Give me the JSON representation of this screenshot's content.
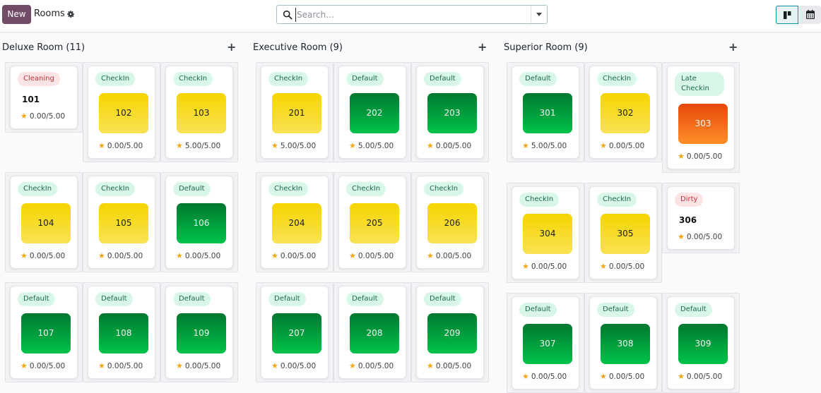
{
  "header": {
    "new_label": "New",
    "title": "Rooms",
    "search_placeholder": "Search..."
  },
  "colors": {
    "brand": "#714b67",
    "checkin_badge": "#d9f7e8",
    "warning_badge": "#fde4e4",
    "tile_yellow": "#f6d500",
    "tile_green": "#00a33f",
    "tile_orange": "#f06017",
    "star": "#f3a712"
  },
  "columns": [
    {
      "title": "Deluxe Room (11)",
      "add_label": "+",
      "cards": [
        {
          "badge": "Cleaning",
          "badge_style": "red",
          "room": "101",
          "tile": "none",
          "rating": "0.00/5.00"
        },
        {
          "badge": "CheckIn",
          "badge_style": "green",
          "room": "102",
          "tile": "yellow",
          "rating": "0.00/5.00"
        },
        {
          "badge": "CheckIn",
          "badge_style": "green",
          "room": "103",
          "tile": "yellow",
          "rating": "5.00/5.00"
        },
        {
          "badge": "CheckIn",
          "badge_style": "green",
          "room": "104",
          "tile": "yellow",
          "rating": "0.00/5.00"
        },
        {
          "badge": "CheckIn",
          "badge_style": "green",
          "room": "105",
          "tile": "yellow",
          "rating": "0.00/5.00"
        },
        {
          "badge": "Default",
          "badge_style": "green",
          "room": "106",
          "tile": "green",
          "rating": "0.00/5.00"
        },
        {
          "badge": "Default",
          "badge_style": "green",
          "room": "107",
          "tile": "green",
          "rating": "0.00/5.00"
        },
        {
          "badge": "Default",
          "badge_style": "green",
          "room": "108",
          "tile": "green",
          "rating": "0.00/5.00"
        },
        {
          "badge": "Default",
          "badge_style": "green",
          "room": "109",
          "tile": "green",
          "rating": "0.00/5.00"
        }
      ]
    },
    {
      "title": "Executive Room (9)",
      "add_label": "+",
      "cards": [
        {
          "badge": "CheckIn",
          "badge_style": "green",
          "room": "201",
          "tile": "yellow",
          "rating": "5.00/5.00"
        },
        {
          "badge": "Default",
          "badge_style": "green",
          "room": "202",
          "tile": "green",
          "rating": "5.00/5.00"
        },
        {
          "badge": "Default",
          "badge_style": "green",
          "room": "203",
          "tile": "green",
          "rating": "0.00/5.00"
        },
        {
          "badge": "CheckIn",
          "badge_style": "green",
          "room": "204",
          "tile": "yellow",
          "rating": "0.00/5.00"
        },
        {
          "badge": "CheckIn",
          "badge_style": "green",
          "room": "205",
          "tile": "yellow",
          "rating": "0.00/5.00"
        },
        {
          "badge": "CheckIn",
          "badge_style": "green",
          "room": "206",
          "tile": "yellow",
          "rating": "0.00/5.00"
        },
        {
          "badge": "Default",
          "badge_style": "green",
          "room": "207",
          "tile": "green",
          "rating": "0.00/5.00"
        },
        {
          "badge": "Default",
          "badge_style": "green",
          "room": "208",
          "tile": "green",
          "rating": "0.00/5.00"
        },
        {
          "badge": "Default",
          "badge_style": "green",
          "room": "209",
          "tile": "green",
          "rating": "0.00/5.00"
        }
      ]
    },
    {
      "title": "Superior Room (9)",
      "add_label": "+",
      "cards": [
        {
          "badge": "Default",
          "badge_style": "green",
          "room": "301",
          "tile": "green",
          "rating": "5.00/5.00"
        },
        {
          "badge": "CheckIn",
          "badge_style": "green",
          "room": "302",
          "tile": "yellow",
          "rating": "0.00/5.00"
        },
        {
          "badge": "Late Checkin",
          "badge_style": "green",
          "room": "303",
          "tile": "orange",
          "rating": "0.00/5.00"
        },
        {
          "badge": "CheckIn",
          "badge_style": "green",
          "room": "304",
          "tile": "yellow",
          "rating": "0.00/5.00"
        },
        {
          "badge": "CheckIn",
          "badge_style": "green",
          "room": "305",
          "tile": "yellow",
          "rating": "0.00/5.00"
        },
        {
          "badge": "Dirty",
          "badge_style": "red",
          "room": "306",
          "tile": "none",
          "rating": "0.00/5.00"
        },
        {
          "badge": "Default",
          "badge_style": "green",
          "room": "307",
          "tile": "green",
          "rating": "0.00/5.00"
        },
        {
          "badge": "Default",
          "badge_style": "green",
          "room": "308",
          "tile": "green",
          "rating": "0.00/5.00"
        },
        {
          "badge": "Default",
          "badge_style": "green",
          "room": "309",
          "tile": "green",
          "rating": "0.00/5.00"
        }
      ]
    }
  ]
}
